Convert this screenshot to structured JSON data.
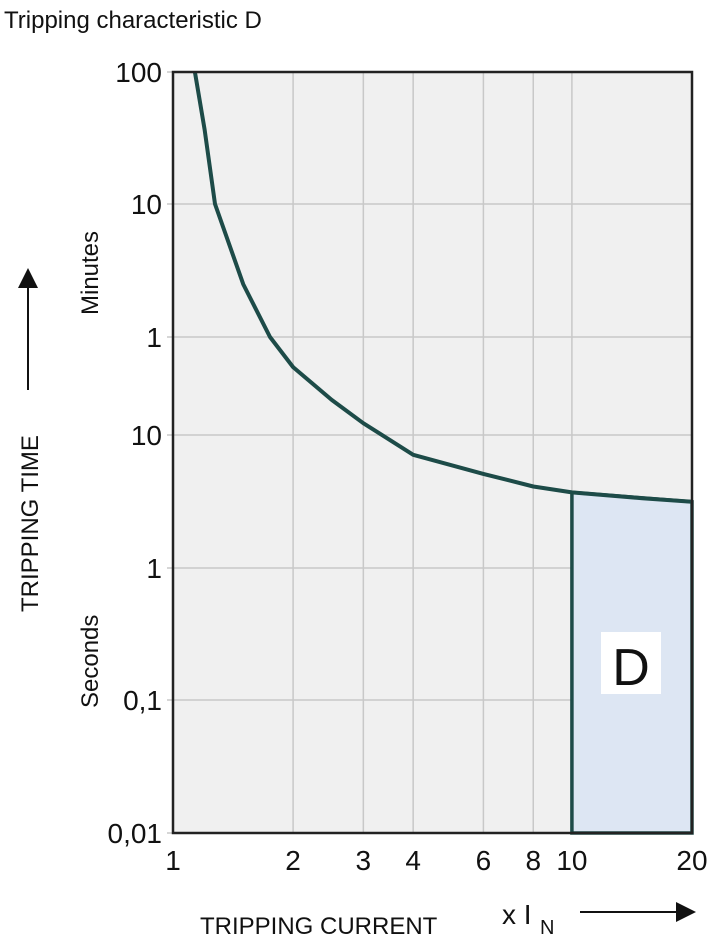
{
  "chart_data": {
    "type": "line",
    "title": "Tripping characteristic D",
    "xlabel": "TRIPPING CURRENT",
    "xunit": "x I",
    "xunit_sub": "N",
    "ylabel": "TRIPPING TIME",
    "y_unit_upper": "Minutes",
    "y_unit_lower": "Seconds",
    "x_scale": "log",
    "y_scale": "log",
    "xlim": [
      1,
      20
    ],
    "x_ticks": [
      {
        "value": 1,
        "label": "1"
      },
      {
        "value": 2,
        "label": "2"
      },
      {
        "value": 3,
        "label": "3"
      },
      {
        "value": 4,
        "label": "4"
      },
      {
        "value": 6,
        "label": "6"
      },
      {
        "value": 8,
        "label": "8"
      },
      {
        "value": 10,
        "label": "10"
      },
      {
        "value": 20,
        "label": "20"
      }
    ],
    "y_ticks_seconds_equivalent": [
      {
        "seconds": 6000,
        "label": "100"
      },
      {
        "seconds": 600,
        "label": "10"
      },
      {
        "seconds": 60,
        "label": "1"
      },
      {
        "seconds": 10,
        "label": "10"
      },
      {
        "seconds": 1,
        "label": "1"
      },
      {
        "seconds": 0.1,
        "label": "0,1"
      },
      {
        "seconds": 0.01,
        "label": "0,01"
      }
    ],
    "grid": true,
    "curve_points_x_seconds": [
      [
        1.135,
        6000
      ],
      [
        1.2,
        2200
      ],
      [
        1.274,
        600
      ],
      [
        1.5,
        150
      ],
      [
        1.75,
        60
      ],
      [
        2,
        34.6
      ],
      [
        2.5,
        19
      ],
      [
        3,
        12.4
      ],
      [
        4,
        7.1
      ],
      [
        6,
        5.1
      ],
      [
        8,
        4.1
      ],
      [
        10,
        3.7
      ],
      [
        15,
        3.35
      ],
      [
        20,
        3.15
      ]
    ],
    "region": {
      "label": "D",
      "x_from": 10,
      "x_to": 20,
      "t_min_seconds": 0.01
    },
    "colors": {
      "curve": "#1d4b48",
      "region_fill": "#dde6f3",
      "plot_bg": "#f0f0f0",
      "grid": "#c8c8c8"
    }
  }
}
